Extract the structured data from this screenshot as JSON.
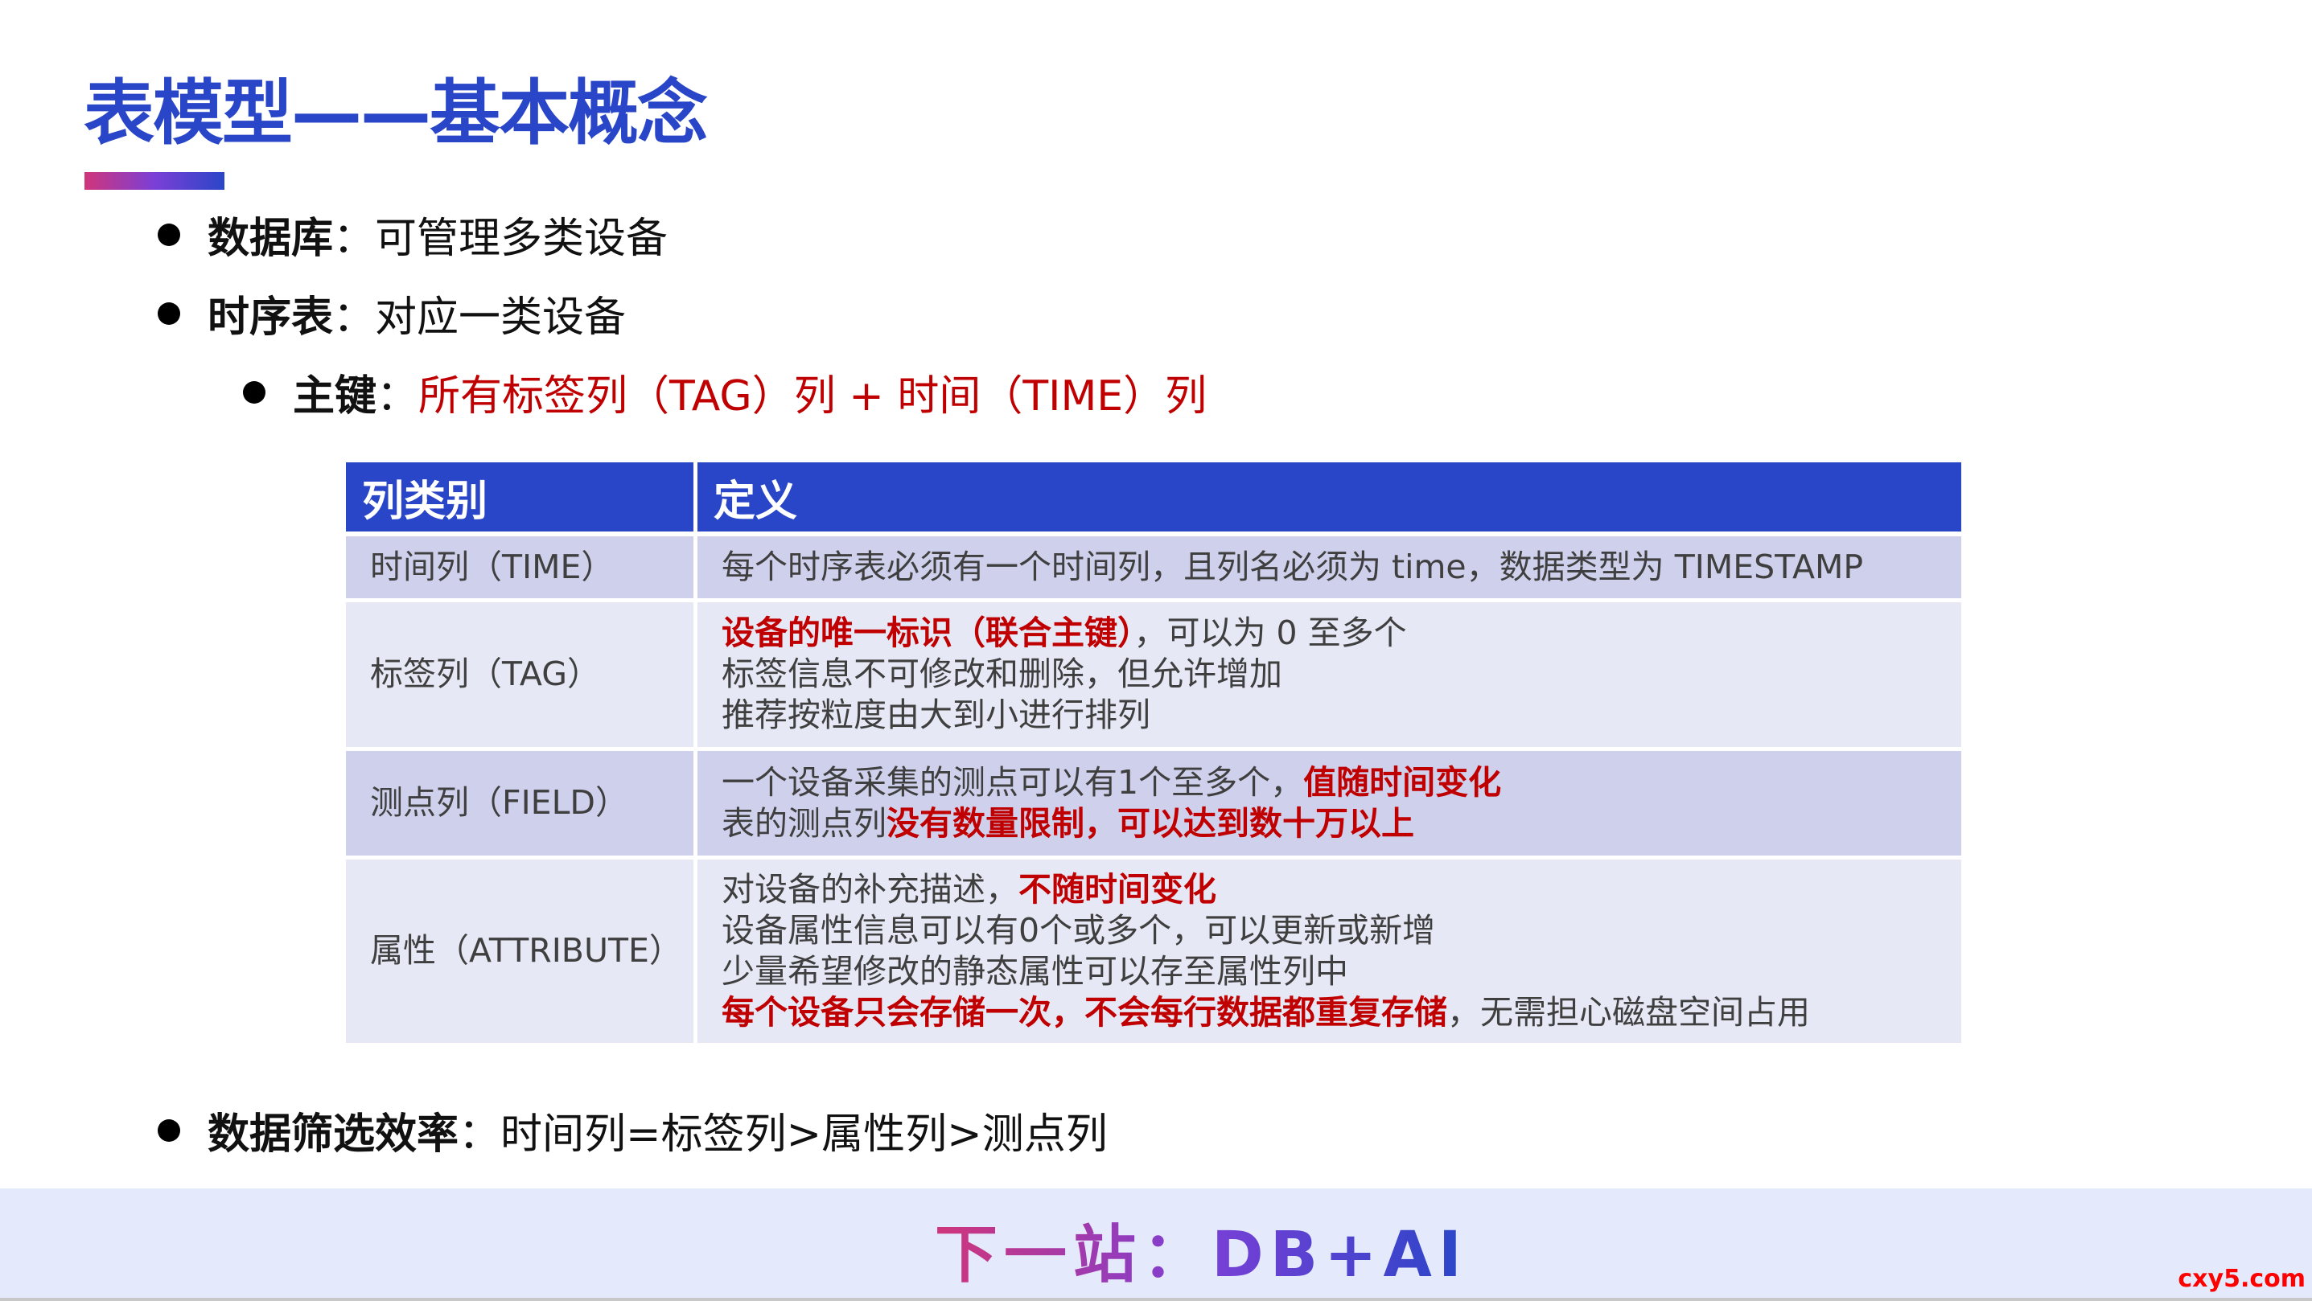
{
  "title": "表模型——基本概念",
  "bullets": [
    {
      "label": "数据库",
      "text": "：可管理多类设备"
    },
    {
      "label": "时序表",
      "text": "：对应一类设备"
    },
    {
      "label": "主键",
      "sep": "：",
      "text": "所有标签列（TAG）列 + 时间（TIME）列"
    }
  ],
  "table": {
    "headers": [
      "列类别",
      "定义"
    ],
    "rows": [
      {
        "category": "时间列（TIME）",
        "lines": [
          [
            {
              "t": "每个时序表必须有一个时间列，且列名必须为 time，数据类型为 TIMESTAMP",
              "red": false
            }
          ]
        ]
      },
      {
        "category": "标签列（TAG）",
        "lines": [
          [
            {
              "t": "设备的唯一标识（联合主键）",
              "red": true
            },
            {
              "t": "，可以为 0 至多个",
              "red": false
            }
          ],
          [
            {
              "t": "标签信息不可修改和删除，但允许增加",
              "red": false
            }
          ],
          [
            {
              "t": "推荐按粒度由大到小进行排列",
              "red": false
            }
          ]
        ]
      },
      {
        "category": "测点列（FIELD）",
        "lines": [
          [
            {
              "t": "一个设备采集的测点可以有1个至多个，",
              "red": false
            },
            {
              "t": "值随时间变化",
              "red": true
            }
          ],
          [
            {
              "t": "表的测点列",
              "red": false
            },
            {
              "t": "没有数量限制，可以达到数十万以上",
              "red": true
            }
          ]
        ]
      },
      {
        "category": "属性（ATTRIBUTE）",
        "lines": [
          [
            {
              "t": "对设备的补充描述，",
              "red": false
            },
            {
              "t": "不随时间变化",
              "red": true
            }
          ],
          [
            {
              "t": "设备属性信息可以有0个或多个，可以更新或新增",
              "red": false
            }
          ],
          [
            {
              "t": "少量希望修改的静态属性可以存至属性列中",
              "red": false
            }
          ],
          [
            {
              "t": "每个设备只会存储一次，不会每行数据都重复存储",
              "red": true
            },
            {
              "t": "，无需担心磁盘空间占用",
              "red": false
            }
          ]
        ]
      }
    ]
  },
  "bottom_bullet": {
    "label": "数据筛选效率",
    "text": "：时间列=标签列>属性列>测点列"
  },
  "footer": {
    "text": "下一站：DB+AI",
    "watermark": "cxy5.com"
  },
  "colors": {
    "accent": "#2a46c8",
    "emphasis": "#c00000",
    "footer_bg": "#e4eafc"
  }
}
